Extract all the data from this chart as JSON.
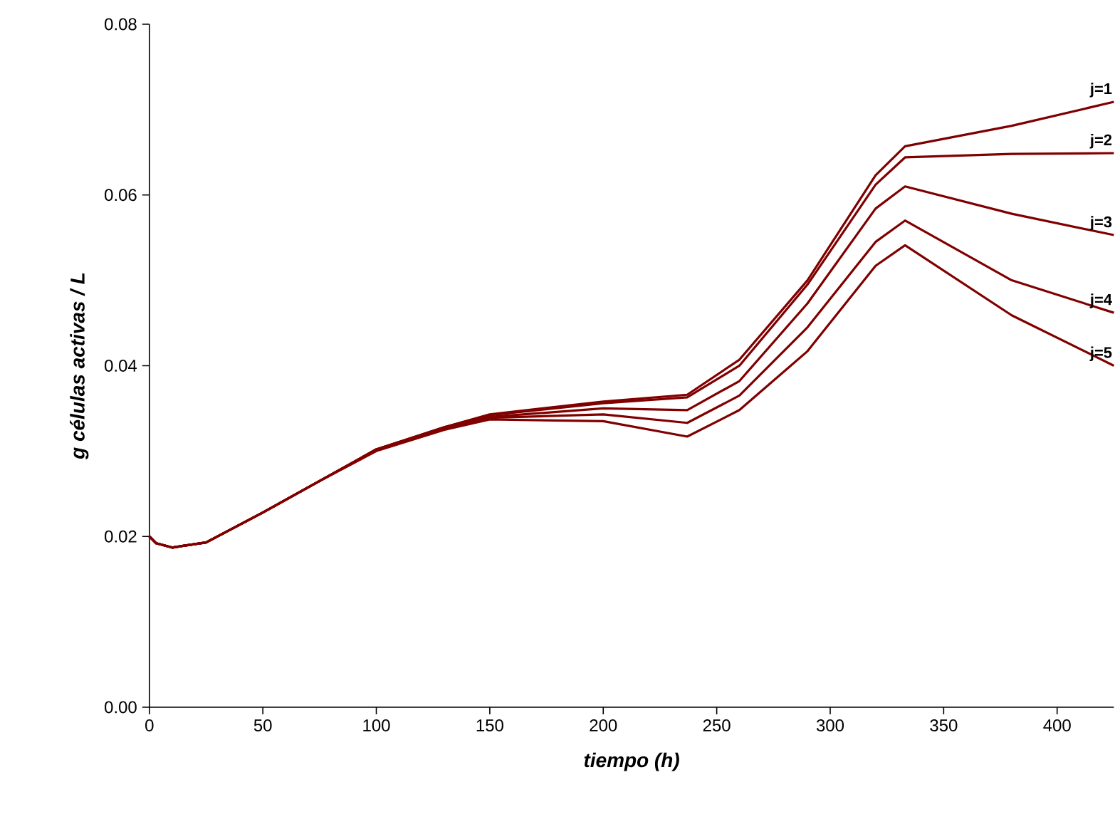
{
  "chart_data": {
    "type": "line",
    "xlabel": "tiempo (h)",
    "ylabel": "g células activas / L",
    "xlim": [
      0,
      425
    ],
    "ylim": [
      0,
      0.08
    ],
    "xticks": [
      0,
      50,
      100,
      150,
      200,
      250,
      300,
      350,
      400
    ],
    "yticks": [
      {
        "value": 0,
        "label": "0.00"
      },
      {
        "value": 0.02,
        "label": "0.02"
      },
      {
        "value": 0.04,
        "label": "0.04"
      },
      {
        "value": 0.06,
        "label": "0.06"
      },
      {
        "value": 0.08,
        "label": "0.08"
      }
    ],
    "grid": false,
    "marker": "none",
    "line_style": "solid",
    "x": [
      0,
      3,
      10,
      25,
      50,
      75,
      100,
      130,
      150,
      200,
      237,
      260,
      290,
      320,
      333,
      380,
      425
    ],
    "series": [
      {
        "name": "j=1",
        "color": "#800000",
        "values": [
          0.02,
          0.0192,
          0.0187,
          0.0193,
          0.0228,
          0.0265,
          0.0302,
          0.0328,
          0.0343,
          0.0358,
          0.0366,
          0.0407,
          0.05,
          0.0623,
          0.0657,
          0.0681,
          0.0709
        ]
      },
      {
        "name": "j=2",
        "color": "#800000",
        "values": [
          0.02,
          0.0192,
          0.0187,
          0.0193,
          0.0228,
          0.0265,
          0.0302,
          0.0328,
          0.0342,
          0.0356,
          0.0363,
          0.04,
          0.0495,
          0.0612,
          0.0644,
          0.0648,
          0.0649
        ]
      },
      {
        "name": "j=3",
        "color": "#800000",
        "values": [
          0.02,
          0.0192,
          0.0187,
          0.0193,
          0.0228,
          0.0265,
          0.0302,
          0.0327,
          0.034,
          0.035,
          0.0348,
          0.0382,
          0.0473,
          0.0584,
          0.061,
          0.0578,
          0.0553
        ]
      },
      {
        "name": "j=4",
        "color": "#800000",
        "values": [
          0.02,
          0.0192,
          0.0187,
          0.0193,
          0.0228,
          0.0265,
          0.0301,
          0.0326,
          0.0339,
          0.0343,
          0.0333,
          0.0365,
          0.0445,
          0.0545,
          0.057,
          0.05,
          0.0462
        ]
      },
      {
        "name": "j=5",
        "color": "#800000",
        "values": [
          0.02,
          0.0192,
          0.0187,
          0.0193,
          0.0228,
          0.0265,
          0.03,
          0.0325,
          0.0337,
          0.0335,
          0.0317,
          0.0348,
          0.0417,
          0.0517,
          0.0541,
          0.0459,
          0.04
        ]
      }
    ]
  }
}
